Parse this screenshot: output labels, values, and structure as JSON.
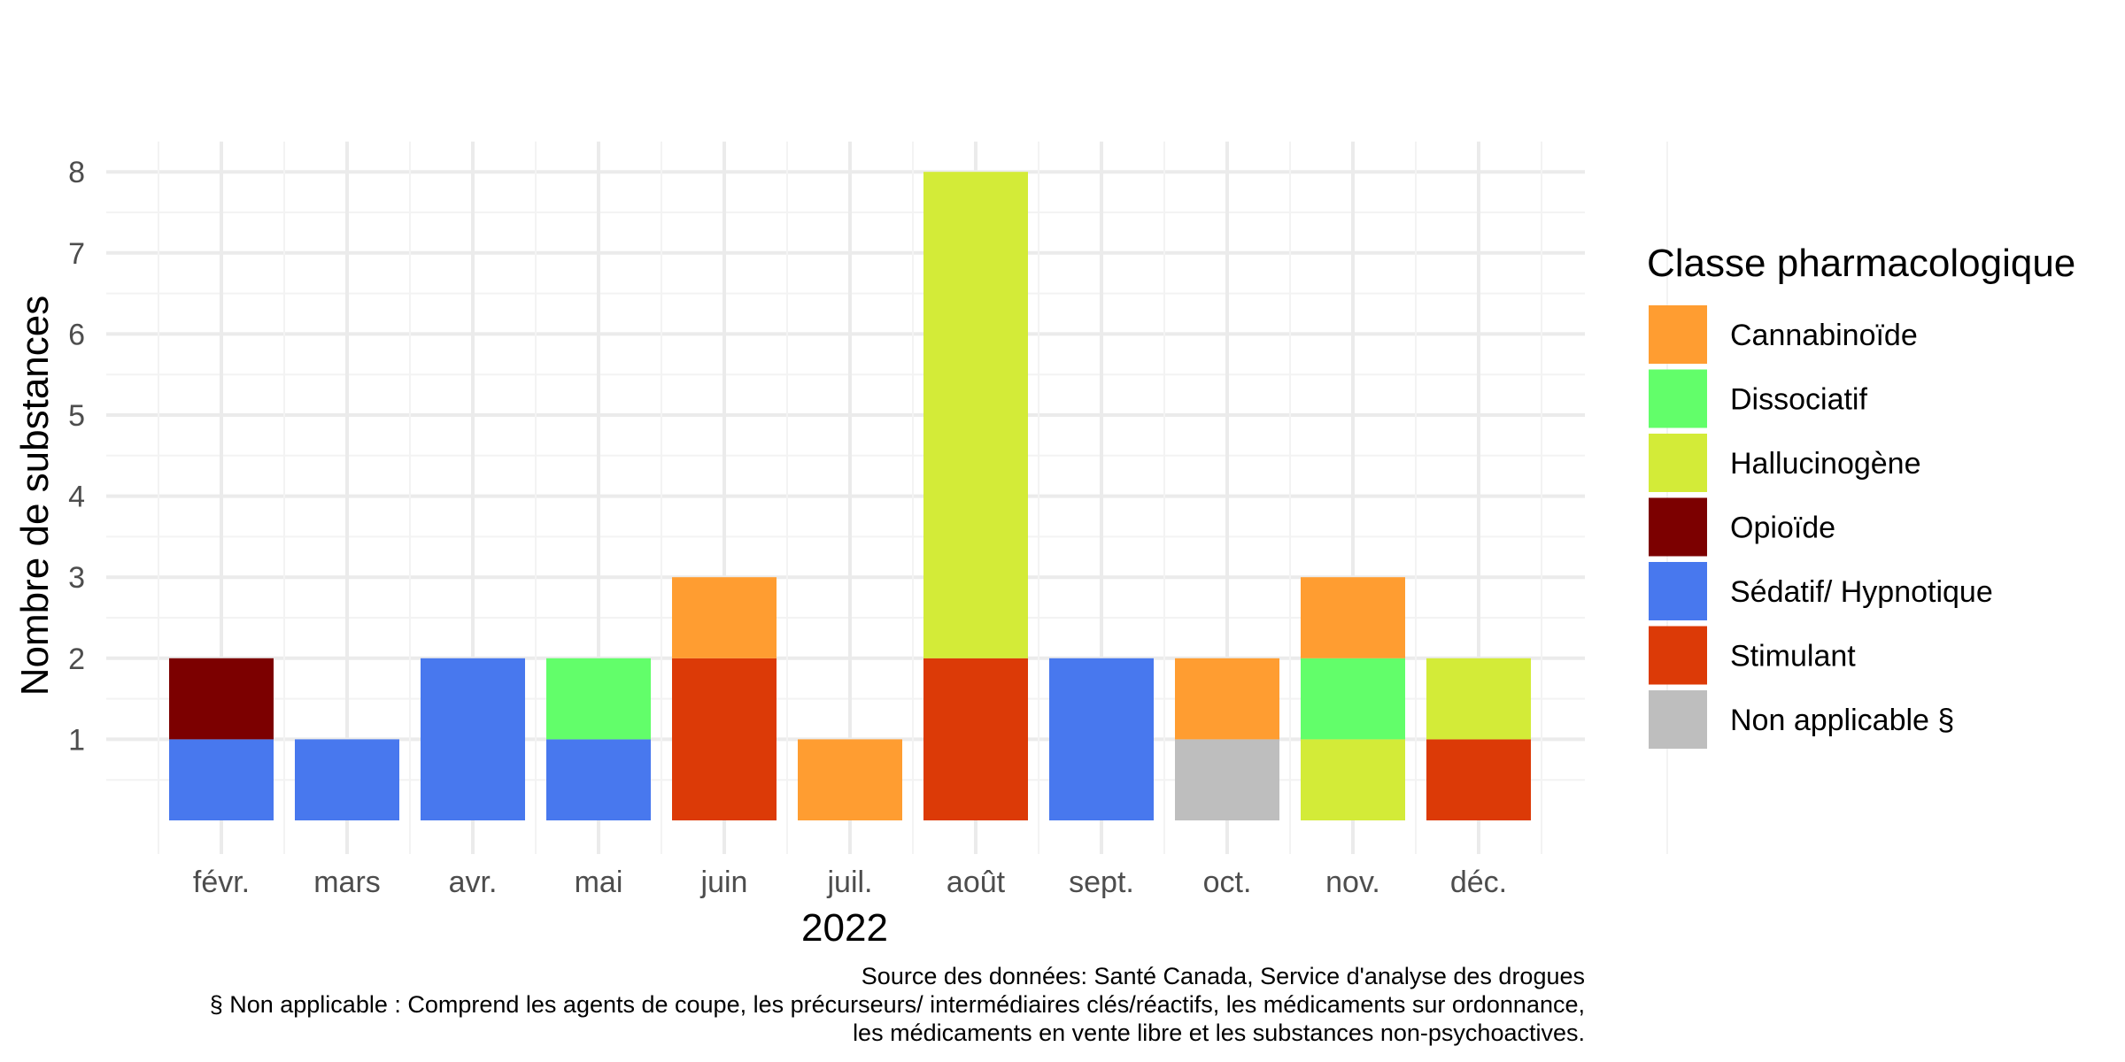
{
  "chart_data": {
    "type": "bar",
    "stacked": true,
    "categories": [
      "févr.",
      "mars",
      "avr.",
      "mai",
      "juin",
      "juil.",
      "août",
      "sept.",
      "oct.",
      "nov.",
      "déc."
    ],
    "xlabel": "2022",
    "ylabel": "Nombre de substances",
    "ylim": [
      0,
      8.4
    ],
    "yticks": [
      1,
      2,
      3,
      4,
      5,
      6,
      7,
      8
    ],
    "grid": true,
    "legend": {
      "title": "Classe pharmacologique",
      "position": "right"
    },
    "series": [
      {
        "name": "Non applicable §",
        "color": "#BEBEBE",
        "values": [
          0,
          0,
          0,
          0,
          0,
          0,
          0,
          0,
          1,
          0,
          0
        ]
      },
      {
        "name": "Sédatif/ Hypnotique",
        "color": "#4878EE",
        "values": [
          1,
          1,
          2,
          1,
          0,
          0,
          0,
          2,
          0,
          0,
          0
        ]
      },
      {
        "name": "Stimulant",
        "color": "#DC3A07",
        "values": [
          0,
          0,
          0,
          0,
          2,
          0,
          2,
          0,
          0,
          0,
          1
        ]
      },
      {
        "name": "Hallucinogène",
        "color": "#D3EB38",
        "values": [
          0,
          0,
          0,
          0,
          0,
          0,
          6,
          0,
          0,
          1,
          1
        ]
      },
      {
        "name": "Dissociatif",
        "color": "#62FE6A",
        "values": [
          0,
          0,
          0,
          1,
          0,
          0,
          0,
          0,
          0,
          1,
          0
        ]
      },
      {
        "name": "Cannabinoïde",
        "color": "#FF9D31",
        "values": [
          0,
          0,
          0,
          0,
          1,
          1,
          0,
          0,
          1,
          1,
          0
        ]
      },
      {
        "name": "Opioïde",
        "color": "#7C0000",
        "values": [
          1,
          0,
          0,
          0,
          0,
          0,
          0,
          0,
          0,
          0,
          0
        ]
      }
    ],
    "legend_order": [
      "Cannabinoïde",
      "Dissociatif",
      "Hallucinogène",
      "Opioïde",
      "Sédatif/ Hypnotique",
      "Stimulant",
      "Non applicable §"
    ],
    "caption": [
      "Source des données: Santé Canada, Service d'analyse des drogues",
      "§ Non applicable : Comprend les agents de coupe, les précurseurs/ intermédiaires clés/réactifs, les médicaments sur ordonnance,",
      "les médicaments en vente libre et les substances non-psychoactives."
    ]
  }
}
